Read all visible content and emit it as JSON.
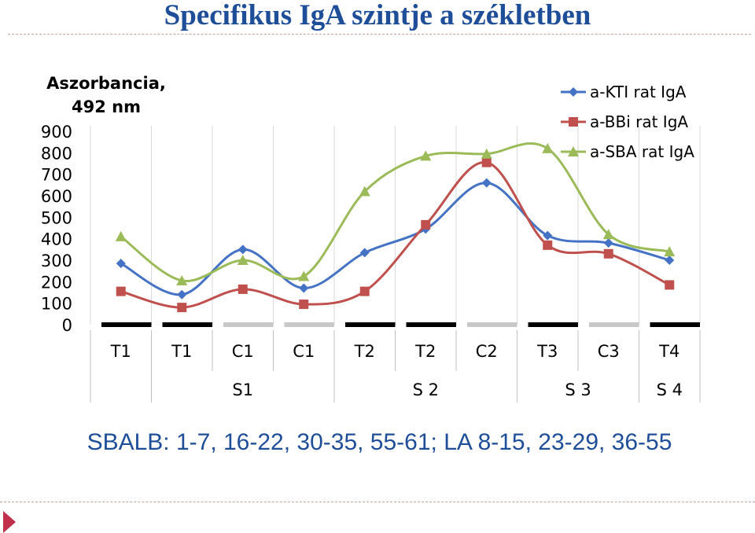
{
  "slide": {
    "title": "Specifikus IgA szintje a székletben",
    "caption": "SBALB: 1-7, 16-22, 30-35, 55-61; LA 8-15, 23-29, 36-55"
  },
  "chart_data": {
    "type": "line",
    "ylabel_line1": "Aszorbancia,",
    "ylabel_line2": "492 nm",
    "ylim": [
      0,
      900
    ],
    "yticks": [
      0,
      100,
      200,
      300,
      400,
      500,
      600,
      700,
      800,
      900
    ],
    "categories": [
      "T1",
      "T1",
      "C1",
      "C1",
      "T2",
      "T2",
      "C2",
      "T3",
      "C3",
      "T4"
    ],
    "groups": [
      {
        "label": "",
        "span": [
          0,
          0
        ]
      },
      {
        "label": "S1",
        "span": [
          1,
          3
        ]
      },
      {
        "label": "S 2",
        "span": [
          4,
          6
        ]
      },
      {
        "label": "S 3",
        "span": [
          7,
          8
        ]
      },
      {
        "label": "S 4",
        "span": [
          9,
          9
        ]
      }
    ],
    "period_bars": [
      "black",
      "black",
      "gray",
      "gray",
      "black",
      "black",
      "gray",
      "black",
      "gray",
      "black"
    ],
    "legend_position": "top-right",
    "series": [
      {
        "name": "a-KTI rat IgA",
        "color": "#4472c4",
        "marker": "diamond",
        "values": [
          285,
          140,
          350,
          170,
          335,
          445,
          660,
          415,
          380,
          300
        ]
      },
      {
        "name": "a-BBi rat IgA",
        "color": "#c0504d",
        "marker": "square",
        "values": [
          155,
          80,
          165,
          95,
          155,
          465,
          755,
          370,
          330,
          185
        ]
      },
      {
        "name": "a-SBA rat IgA",
        "color": "#9bbb59",
        "marker": "triangle",
        "values": [
          410,
          205,
          300,
          225,
          620,
          785,
          795,
          820,
          420,
          340
        ]
      }
    ]
  }
}
